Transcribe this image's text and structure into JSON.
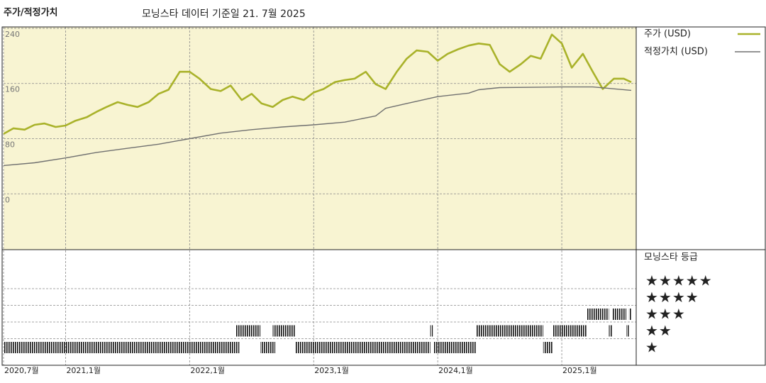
{
  "chart_data": [
    {
      "type": "line",
      "title": "주가/적정가치",
      "subtitle": "모닝스타 데이터 기준일 21. 7월 2025",
      "background": "#f8f4d2",
      "xlim": [
        2020.5,
        2025.6
      ],
      "xticks": [
        {
          "value": 2020.5,
          "label": "2020,7월"
        },
        {
          "value": 2021,
          "label": "2021,1월"
        },
        {
          "value": 2022,
          "label": "2022,1월"
        },
        {
          "value": 2023,
          "label": "2023,1월"
        },
        {
          "value": 2024,
          "label": "2024,1월"
        },
        {
          "value": 2025,
          "label": "2025,1월"
        }
      ],
      "ylim": [
        -81,
        242
      ],
      "yticks": [
        0,
        80,
        160,
        240
      ],
      "grid": true,
      "series": [
        {
          "name": "주가 (USD)",
          "color": "#a9b22a",
          "x": [
            2020.5,
            2020.58,
            2020.67,
            2020.75,
            2020.83,
            2020.92,
            2021.0,
            2021.08,
            2021.17,
            2021.25,
            2021.33,
            2021.42,
            2021.5,
            2021.58,
            2021.67,
            2021.75,
            2021.83,
            2021.92,
            2022.0,
            2022.08,
            2022.17,
            2022.25,
            2022.33,
            2022.42,
            2022.5,
            2022.58,
            2022.67,
            2022.75,
            2022.83,
            2022.92,
            2023.0,
            2023.08,
            2023.17,
            2023.25,
            2023.33,
            2023.42,
            2023.5,
            2023.58,
            2023.67,
            2023.75,
            2023.83,
            2023.92,
            2024.0,
            2024.08,
            2024.17,
            2024.25,
            2024.33,
            2024.42,
            2024.5,
            2024.58,
            2024.67,
            2024.75,
            2024.83,
            2024.92,
            2025.0,
            2025.08,
            2025.17,
            2025.25,
            2025.33,
            2025.42,
            2025.5,
            2025.56
          ],
          "values": [
            87,
            95,
            93,
            100,
            102,
            97,
            99,
            106,
            111,
            119,
            126,
            133,
            129,
            126,
            133,
            145,
            151,
            177,
            177,
            167,
            152,
            149,
            157,
            136,
            145,
            131,
            126,
            136,
            141,
            136,
            147,
            152,
            162,
            165,
            167,
            177,
            159,
            152,
            177,
            196,
            208,
            206,
            193,
            203,
            210,
            215,
            218,
            216,
            188,
            177,
            188,
            200,
            196,
            231,
            218,
            183,
            203,
            177,
            152,
            167,
            167,
            162
          ]
        },
        {
          "name": "적정가치 (USD)",
          "color": "#707070",
          "x": [
            2020.5,
            2020.75,
            2021.0,
            2021.25,
            2021.5,
            2021.75,
            2022.0,
            2022.25,
            2022.5,
            2022.75,
            2023.0,
            2023.25,
            2023.5,
            2023.58,
            2023.75,
            2024.0,
            2024.25,
            2024.33,
            2024.5,
            2025.0,
            2025.25,
            2025.56
          ],
          "values": [
            41,
            45,
            52,
            60,
            66,
            72,
            80,
            88,
            93,
            97,
            100,
            104,
            113,
            124,
            131,
            141,
            146,
            151,
            154,
            155,
            155,
            150
          ]
        }
      ]
    },
    {
      "type": "timeline",
      "title": "모닝스타 등급",
      "categories": [
        "★",
        "★★",
        "★★★",
        "★★★★",
        "★★★★★"
      ],
      "periods": [
        {
          "start": 2020.5,
          "end": 2022.4,
          "rating": 1
        },
        {
          "start": 2022.37,
          "end": 2022.57,
          "rating": 2
        },
        {
          "start": 2022.57,
          "end": 2022.69,
          "rating": 1
        },
        {
          "start": 2022.67,
          "end": 2022.85,
          "rating": 2
        },
        {
          "start": 2022.85,
          "end": 2023.94,
          "rating": 1
        },
        {
          "start": 2023.94,
          "end": 2023.96,
          "rating": 2
        },
        {
          "start": 2023.97,
          "end": 2024.31,
          "rating": 1
        },
        {
          "start": 2024.31,
          "end": 2024.85,
          "rating": 2
        },
        {
          "start": 2024.85,
          "end": 2024.93,
          "rating": 1
        },
        {
          "start": 2024.93,
          "end": 2025.2,
          "rating": 2
        },
        {
          "start": 2025.2,
          "end": 2025.38,
          "rating": 3
        },
        {
          "start": 2025.38,
          "end": 2025.41,
          "rating": 2
        },
        {
          "start": 2025.41,
          "end": 2025.52,
          "rating": 3
        },
        {
          "start": 2025.52,
          "end": 2025.54,
          "rating": 2
        },
        {
          "start": 2025.54,
          "end": 2025.56,
          "rating": 3
        }
      ]
    }
  ]
}
